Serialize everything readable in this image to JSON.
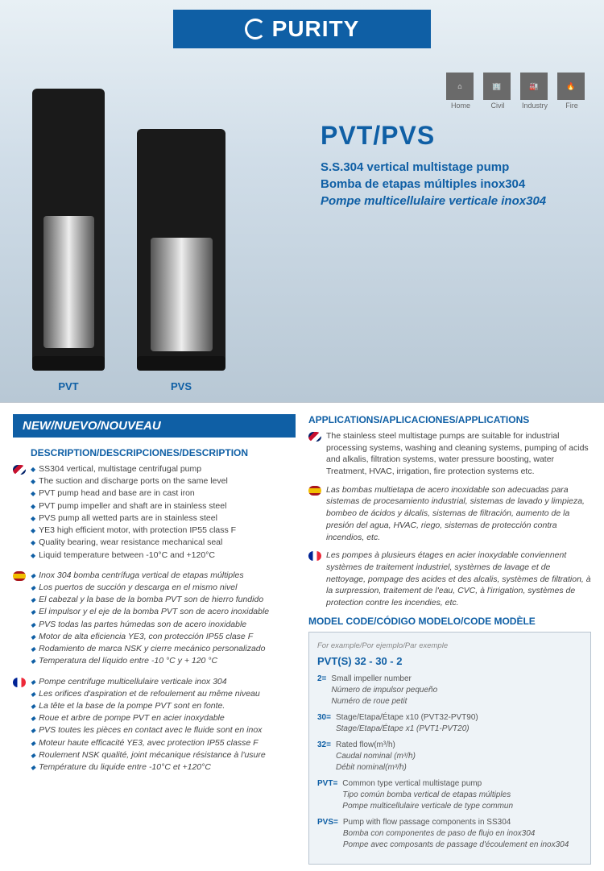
{
  "brand": "PURITY",
  "appIcons": [
    {
      "glyph": "⌂",
      "label": "Home"
    },
    {
      "glyph": "🏢",
      "label": "Civil"
    },
    {
      "glyph": "🏭",
      "label": "Industry"
    },
    {
      "glyph": "🔥",
      "label": "Fire"
    }
  ],
  "title": "PVT/PVS",
  "subs": [
    "S.S.304 vertical multistage pump",
    "Bomba de etapas múltiples inox304",
    "Pompe multicellulaire verticale inox304"
  ],
  "pumpLabels": [
    "PVT",
    "PVS"
  ],
  "newBanner": "NEW/NUEVO/NOUVEAU",
  "descHead": "DESCRIPTION/DESCRIPCIONES/DESCRIPTION",
  "desc": {
    "en": [
      "SS304 vertical, multistage centrifugal pump",
      "The suction and discharge ports on the same level",
      "PVT pump head and base are in cast iron",
      "PVT pump impeller and shaft are in stainless steel",
      "PVS pump all wetted parts are in stainless steel",
      "YE3 high efficient motor, with protection IP55 class F",
      "Quality bearing, wear resistance mechanical seal",
      "Liquid temperature between -10°C and +120°C"
    ],
    "es": [
      "Inox 304 bomba centrífuga vertical de etapas múltiples",
      "Los puertos de succión y descarga en el mismo nivel",
      "El cabezal y la base de la bomba PVT son de hierro fundido",
      "El impulsor y el eje de la bomba PVT son de acero inoxidable",
      "PVS todas las partes húmedas son de acero inoxidable",
      "Motor de alta eficiencia YE3, con protección IP55 clase F",
      "Rodamiento de marca NSK y cierre mecánico personalizado",
      "Temperatura del líquido entre -10 °C y + 120 °C"
    ],
    "fr": [
      "Pompe centrifuge multicellulaire verticale inox 304",
      "Les orifices d'aspiration et de refoulement au même niveau",
      "La tête et la base de la pompe PVT sont en fonte.",
      "Roue et arbre de pompe PVT en acier inoxydable",
      "PVS toutes les pièces en contact avec le fluide sont en inox",
      "Moteur haute efficacité YE3, avec protection IP55 classe F",
      "Roulement NSK qualité, joint mécanique résistance à l'usure",
      "Température du liquide entre -10°C et +120°C"
    ]
  },
  "appsHead": "APPLICATIONS/APLICACIONES/APPLICATIONS",
  "apps": {
    "en": "The stainless steel multistage pumps are suitable for industrial processing systems, washing and cleaning systems, pumping of acids and alkalis, filtration systems, water pressure boosting, water Treatment, HVAC, irrigation, fire protection systems etc.",
    "es": "Las bombas multietapa de acero inoxidable son adecuadas para sistemas de procesamiento industrial, sistemas de lavado y limpieza, bombeo de ácidos y álcalis, sistemas de filtración, aumento de la presión del agua, HVAC, riego, sistemas de protección contra incendios, etc.",
    "fr": "Les pompes à plusieurs étages en acier inoxydable conviennent systèmes de traitement industriel, systèmes de lavage et de nettoyage, pompage des acides et des alcalis, systèmes de filtration, à la surpression, traitement de l'eau, CVC, à l'irrigation, systèmes de protection contre les incendies, etc."
  },
  "modelHead": "MODEL CODE/CÓDIGO MODELO/CODE MODÈLE",
  "model": {
    "forExample": "For example/Por ejemplo/Par exemple",
    "code": "PVT(S)  32 - 30 - 2",
    "rows": [
      {
        "key": "2=",
        "main": "Small impeller number",
        "subs": [
          "Número de impulsor pequeño",
          "Numéro de roue petit"
        ]
      },
      {
        "key": "30=",
        "main": "Stage/Etapa/Étape x10 (PVT32-PVT90)",
        "subs": [
          "Stage/Etapa/Étape x1 (PVT1-PVT20)"
        ]
      },
      {
        "key": "32=",
        "main": "Rated flow(m³/h)",
        "subs": [
          "Caudal nominal (m³/h)",
          "Débit nominal(m³/h)"
        ]
      },
      {
        "key": "PVT=",
        "main": "Common type vertical multistage pump",
        "subs": [
          "Tipo común bomba vertical de etapas múltiples",
          "Pompe multicellulaire verticale de type commun"
        ]
      },
      {
        "key": "PVS=",
        "main": "Pump with flow passage components in SS304",
        "subs": [
          "Bomba con componentes de paso de flujo en inox304",
          "Pompe avec composants de passage d'écoulement en inox304"
        ]
      }
    ]
  },
  "colors": {
    "brand": "#0f5fa5",
    "heroTop": "#e8f0f5",
    "heroBot": "#b8c8d5",
    "iconBg": "#6a6a6a",
    "modelBg": "#eef3f7",
    "modelBorder": "#b8c4d0",
    "text": "#444"
  }
}
